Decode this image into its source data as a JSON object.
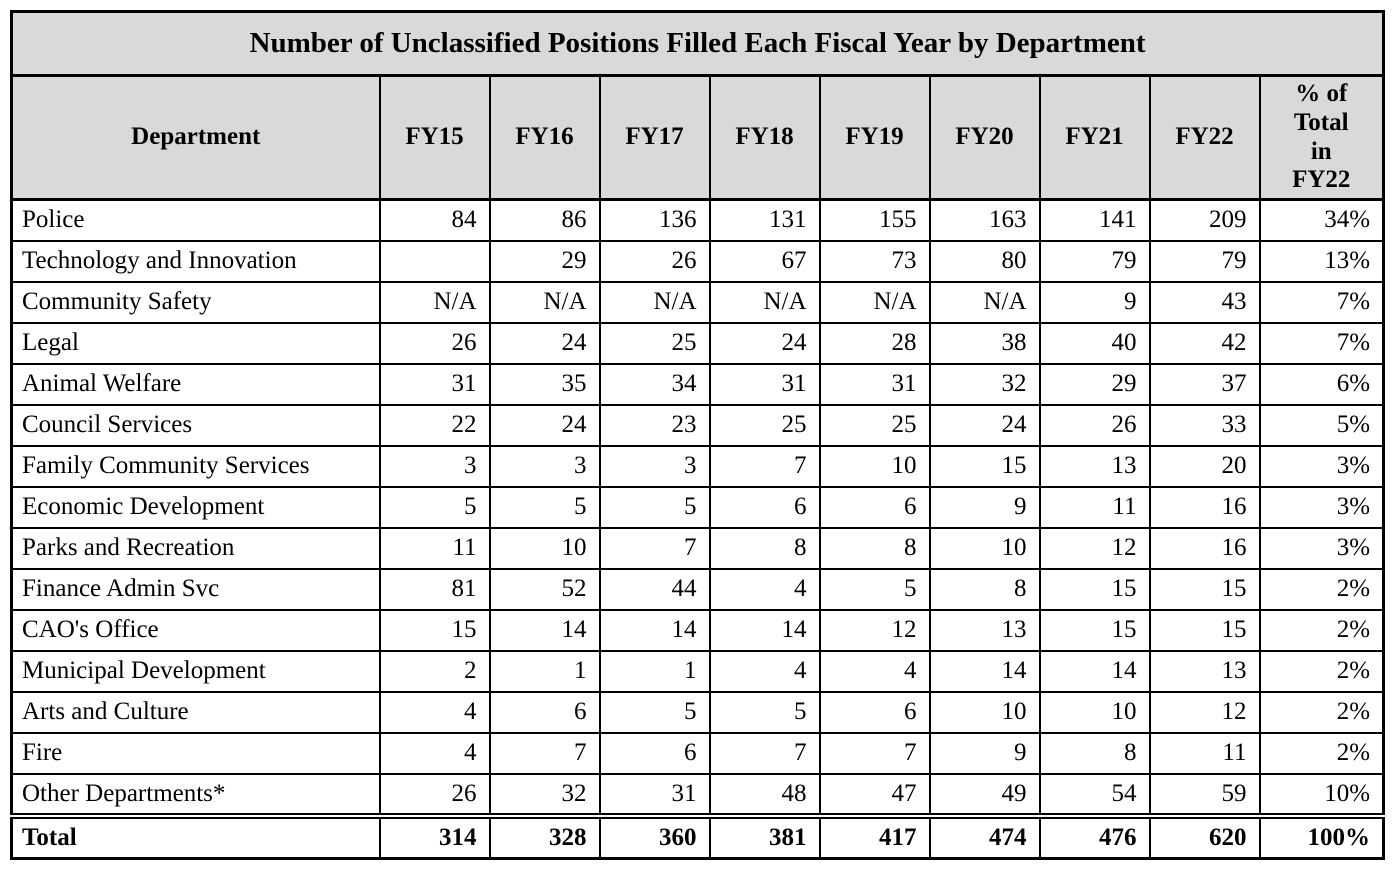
{
  "title": "Number of Unclassified Positions Filled Each Fiscal Year by Department",
  "table": {
    "columns": [
      "Department",
      "FY15",
      "FY16",
      "FY17",
      "FY18",
      "FY19",
      "FY20",
      "FY21",
      "FY22",
      "% of\nTotal\nin\nFY22"
    ],
    "rows": [
      {
        "department": "Police",
        "values": [
          "84",
          "86",
          "136",
          "131",
          "155",
          "163",
          "141",
          "209",
          "34%"
        ]
      },
      {
        "department": "Technology and Innovation",
        "values": [
          "",
          "29",
          "26",
          "67",
          "73",
          "80",
          "79",
          "79",
          "13%"
        ]
      },
      {
        "department": "Community Safety",
        "values": [
          "N/A",
          "N/A",
          "N/A",
          "N/A",
          "N/A",
          "N/A",
          "9",
          "43",
          "7%"
        ]
      },
      {
        "department": "Legal",
        "values": [
          "26",
          "24",
          "25",
          "24",
          "28",
          "38",
          "40",
          "42",
          "7%"
        ]
      },
      {
        "department": "Animal Welfare",
        "values": [
          "31",
          "35",
          "34",
          "31",
          "31",
          "32",
          "29",
          "37",
          "6%"
        ]
      },
      {
        "department": "Council Services",
        "values": [
          "22",
          "24",
          "23",
          "25",
          "25",
          "24",
          "26",
          "33",
          "5%"
        ]
      },
      {
        "department": "Family Community Services",
        "values": [
          "3",
          "3",
          "3",
          "7",
          "10",
          "15",
          "13",
          "20",
          "3%"
        ]
      },
      {
        "department": "Economic Development",
        "values": [
          "5",
          "5",
          "5",
          "6",
          "6",
          "9",
          "11",
          "16",
          "3%"
        ]
      },
      {
        "department": "Parks and Recreation",
        "values": [
          "11",
          "10",
          "7",
          "8",
          "8",
          "10",
          "12",
          "16",
          "3%"
        ]
      },
      {
        "department": "Finance Admin Svc",
        "values": [
          "81",
          "52",
          "44",
          "4",
          "5",
          "8",
          "15",
          "15",
          "2%"
        ]
      },
      {
        "department": "CAO's Office",
        "values": [
          "15",
          "14",
          "14",
          "14",
          "12",
          "13",
          "15",
          "15",
          "2%"
        ]
      },
      {
        "department": "Municipal Development",
        "values": [
          "2",
          "1",
          "1",
          "4",
          "4",
          "14",
          "14",
          "13",
          "2%"
        ]
      },
      {
        "department": "Arts and Culture",
        "values": [
          "4",
          "6",
          "5",
          "5",
          "6",
          "10",
          "10",
          "12",
          "2%"
        ]
      },
      {
        "department": "Fire",
        "values": [
          "4",
          "7",
          "6",
          "7",
          "7",
          "9",
          "8",
          "11",
          "2%"
        ]
      },
      {
        "department": "Other Departments*",
        "values": [
          "26",
          "32",
          "31",
          "48",
          "47",
          "49",
          "54",
          "59",
          "10%"
        ]
      }
    ],
    "total_row": {
      "department": "Total",
      "values": [
        "314",
        "328",
        "360",
        "381",
        "417",
        "474",
        "476",
        "620",
        "100%"
      ]
    }
  },
  "colors": {
    "header_bg": "#d9d9d9",
    "border": "#000000",
    "row_bg": "#ffffff",
    "text": "#000000"
  }
}
